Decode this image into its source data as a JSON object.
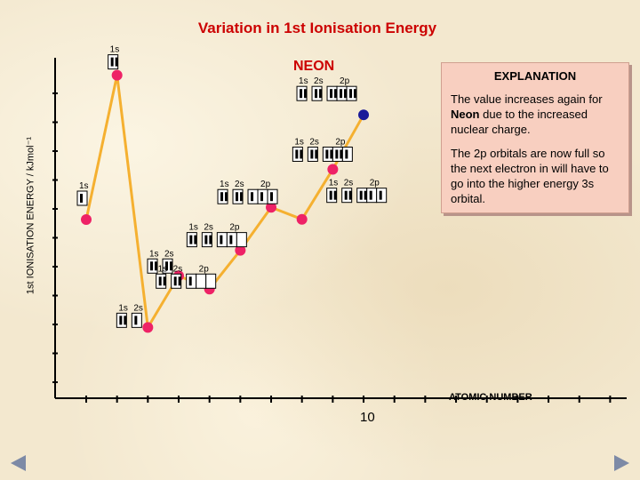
{
  "title": "Variation in 1st Ionisation Energy",
  "element_label": "NEON",
  "explanation": {
    "heading": "EXPLANATION",
    "p1_a": "The value increases again for ",
    "p1_b": "Neon",
    "p1_c": " due to the increased nuclear charge.",
    "p2": "The 2p orbitals are now full so the next electron in will have to go into the higher energy 3s orbital."
  },
  "nav": {
    "prev": "back-arrow-icon",
    "next": "forward-arrow-icon"
  },
  "chart_data": {
    "type": "line",
    "title": "Variation in 1st Ionisation Energy",
    "xlabel": "ATOMIC NUMBER",
    "ylabel": "1st IONISATION ENERGY / kJmol⁻¹",
    "x_ticks": [
      "10"
    ],
    "ylim": [
      0,
      2500
    ],
    "grid": false,
    "colors": {
      "line": "#f5b030",
      "point": "#ee2266",
      "highlight": "#1a1a99"
    },
    "points": [
      {
        "x": 1,
        "y": 1312,
        "config": {
          "labels": [
            "1s"
          ],
          "boxes": [
            1
          ]
        }
      },
      {
        "x": 2,
        "y": 2372,
        "config": {
          "labels": [
            "1s"
          ],
          "boxes": [
            2
          ]
        }
      },
      {
        "x": 3,
        "y": 520,
        "config": {
          "labels": [
            "1s",
            "2s"
          ],
          "boxes": [
            2,
            1
          ]
        }
      },
      {
        "x": 4,
        "y": 899,
        "config": {
          "labels": [
            "1s",
            "2s"
          ],
          "boxes": [
            2,
            2
          ]
        }
      },
      {
        "x": 5,
        "y": 801,
        "config": {
          "labels": [
            "1s",
            "2s",
            "2p"
          ],
          "boxes": [
            2,
            2,
            1,
            0,
            0
          ]
        }
      },
      {
        "x": 6,
        "y": 1086,
        "config": {
          "labels": [
            "1s",
            "2s",
            "2p"
          ],
          "boxes": [
            2,
            2,
            1,
            1,
            0
          ]
        }
      },
      {
        "x": 7,
        "y": 1402,
        "config": {
          "labels": [
            "1s",
            "2s",
            "2p"
          ],
          "boxes": [
            2,
            2,
            1,
            1,
            1
          ]
        }
      },
      {
        "x": 8,
        "y": 1314,
        "config": {
          "labels": [
            "1s",
            "2s",
            "2p"
          ],
          "boxes": [
            2,
            2,
            2,
            1,
            1
          ]
        }
      },
      {
        "x": 9,
        "y": 1681,
        "config": {
          "labels": [
            "1s",
            "2s",
            "2p"
          ],
          "boxes": [
            2,
            2,
            2,
            2,
            1
          ]
        }
      },
      {
        "x": 10,
        "y": 2081,
        "config": {
          "labels": [
            "1s",
            "2s",
            "2p"
          ],
          "boxes": [
            2,
            2,
            2,
            2,
            2
          ]
        }
      }
    ]
  }
}
